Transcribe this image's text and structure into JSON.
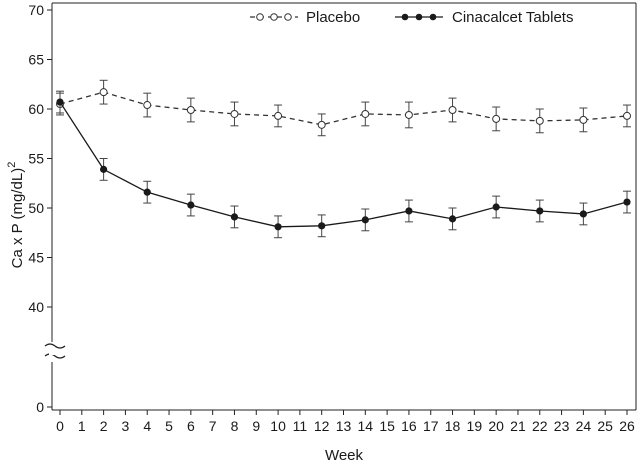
{
  "chart_data": {
    "type": "line",
    "xlabel": "Week",
    "ylabel": "Ca x P (mg/dL)",
    "ylabel_superscript": "2",
    "x_ticks": [
      0,
      1,
      2,
      3,
      4,
      5,
      6,
      7,
      8,
      9,
      10,
      11,
      12,
      13,
      14,
      15,
      16,
      17,
      18,
      19,
      20,
      21,
      22,
      23,
      24,
      25,
      26
    ],
    "xlim": [
      0,
      26
    ],
    "y_ticks": [
      0,
      40,
      45,
      50,
      55,
      60,
      65,
      70
    ],
    "ylim": [
      40,
      70
    ],
    "y_axis_break": true,
    "grid": false,
    "legend_position": "top-right",
    "x": [
      0,
      2,
      4,
      6,
      8,
      10,
      12,
      14,
      16,
      18,
      20,
      22,
      24,
      26
    ],
    "series": [
      {
        "name": "Placebo",
        "line_style": "dashed",
        "marker": "open-circle",
        "color": "#333333",
        "values": [
          60.5,
          61.7,
          60.4,
          59.9,
          59.5,
          59.3,
          58.4,
          59.5,
          59.4,
          59.9,
          59.0,
          58.8,
          58.9,
          59.3
        ],
        "error": [
          1.1,
          1.2,
          1.2,
          1.2,
          1.2,
          1.1,
          1.1,
          1.2,
          1.3,
          1.2,
          1.2,
          1.2,
          1.2,
          1.1
        ]
      },
      {
        "name": "Cinacalcet Tablets",
        "line_style": "solid",
        "marker": "filled-circle",
        "color": "#1a1a1a",
        "values": [
          60.7,
          53.9,
          51.6,
          50.3,
          49.1,
          48.1,
          48.2,
          48.8,
          49.7,
          48.9,
          50.1,
          49.7,
          49.4,
          50.6
        ],
        "error": [
          1.1,
          1.1,
          1.1,
          1.1,
          1.1,
          1.1,
          1.1,
          1.1,
          1.1,
          1.1,
          1.1,
          1.1,
          1.1,
          1.1
        ]
      }
    ]
  }
}
